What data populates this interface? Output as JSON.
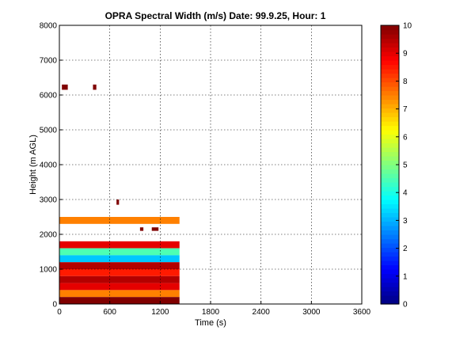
{
  "chart_data": {
    "type": "heatmap",
    "title": "OPRA Spectral Width (m/s)  Date: 99.9.25, Hour: 1",
    "xlabel": "Time (s)",
    "ylabel": "Height (m AGL)",
    "xlim": [
      0,
      3600
    ],
    "ylim": [
      0,
      8000
    ],
    "xticks": [
      0,
      600,
      1200,
      1800,
      2400,
      3000,
      3600
    ],
    "yticks": [
      0,
      1000,
      2000,
      3000,
      4000,
      5000,
      6000,
      7000,
      8000
    ],
    "grid": true,
    "colorbar": {
      "range": [
        0,
        10
      ],
      "ticks": [
        0,
        1,
        2,
        3,
        4,
        5,
        6,
        7,
        8,
        9,
        10
      ],
      "colormap": "jet"
    },
    "data_extent_x": [
      0,
      1430
    ],
    "cells": [
      {
        "x": [
          30,
          100
        ],
        "y": [
          6150,
          6300
        ],
        "v": 10
      },
      {
        "x": [
          400,
          440
        ],
        "y": [
          6150,
          6300
        ],
        "v": 10
      },
      {
        "x": [
          680,
          710
        ],
        "y": [
          2850,
          3000
        ],
        "v": 10
      },
      {
        "x": [
          0,
          1430
        ],
        "y": [
          2300,
          2500
        ],
        "v": 7.5
      },
      {
        "x": [
          960,
          1000
        ],
        "y": [
          2100,
          2200
        ],
        "v": 10
      },
      {
        "x": [
          1100,
          1180
        ],
        "y": [
          2100,
          2200
        ],
        "v": 10
      },
      {
        "x": [
          0,
          1430
        ],
        "y": [
          1600,
          1800
        ],
        "v": 9
      },
      {
        "x": [
          0,
          1430
        ],
        "y": [
          1400,
          1600
        ],
        "v": 4.5
      },
      {
        "x": [
          0,
          1430
        ],
        "y": [
          1200,
          1400
        ],
        "v": 3.2
      },
      {
        "x": [
          0,
          1430
        ],
        "y": [
          1000,
          1200
        ],
        "v": 9.5
      },
      {
        "x": [
          0,
          1430
        ],
        "y": [
          800,
          1000
        ],
        "v": 8.5
      },
      {
        "x": [
          0,
          1430
        ],
        "y": [
          600,
          800
        ],
        "v": 9.5
      },
      {
        "x": [
          0,
          1430
        ],
        "y": [
          400,
          600
        ],
        "v": 9
      },
      {
        "x": [
          0,
          1430
        ],
        "y": [
          200,
          400
        ],
        "v": 7.5
      },
      {
        "x": [
          0,
          1430
        ],
        "y": [
          0,
          200
        ],
        "v": 10
      }
    ]
  }
}
